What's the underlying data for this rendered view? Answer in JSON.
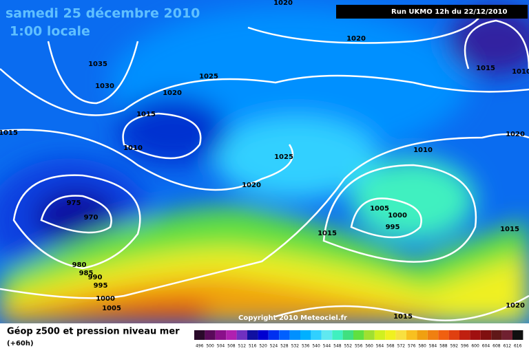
{
  "header": {
    "title": "samedi 25 décembre 2010",
    "subtitle": "1:00 locale",
    "run": "Run UKMO 12h du 22/12/2010",
    "copyright": "Copyright 2010 Meteociel.fr"
  },
  "isobar_labels": [
    "1035",
    "1030",
    "1025",
    "1020",
    "1015",
    "1010",
    "1015",
    "975",
    "970",
    "980",
    "985",
    "990",
    "995",
    "1000",
    "1005",
    "1020",
    "1025",
    "1015",
    "1020",
    "1020",
    "1015",
    "1010",
    "1020",
    "1010",
    "1005",
    "1000",
    "995",
    "1015",
    "1020",
    "1015"
  ],
  "legend": {
    "title": "Géop z500 et pression niveau mer",
    "subtitle": "(+60h)",
    "scale": [
      "496",
      "500",
      "504",
      "508",
      "512",
      "516",
      "520",
      "524",
      "528",
      "532",
      "536",
      "540",
      "544",
      "548",
      "552",
      "556",
      "560",
      "564",
      "568",
      "572",
      "576",
      "580",
      "584",
      "588",
      "592",
      "596",
      "600",
      "604",
      "608",
      "612",
      "616"
    ],
    "colors": [
      "#2a0a2a",
      "#5a0a5a",
      "#8a108a",
      "#b020b0",
      "#7030c0",
      "#1010a0",
      "#0000d0",
      "#0030f0",
      "#0060ff",
      "#0090ff",
      "#00b0ff",
      "#30d0ff",
      "#60e8f0",
      "#40f0c0",
      "#40e080",
      "#60e040",
      "#a0e030",
      "#d0f020",
      "#f0f020",
      "#f8e040",
      "#f8c020",
      "#f0a010",
      "#f08010",
      "#f06010",
      "#e04010",
      "#c02010",
      "#a01010",
      "#801010",
      "#601818",
      "#702030",
      "#101010"
    ]
  }
}
